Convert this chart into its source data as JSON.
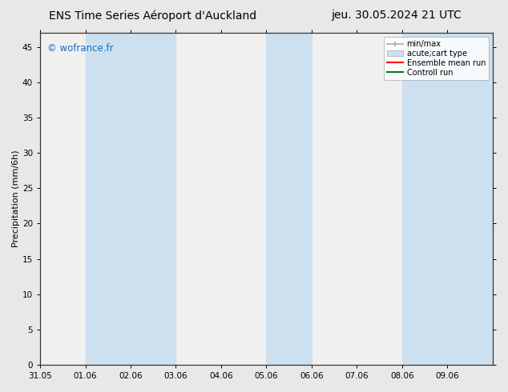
{
  "title_left": "ENS Time Series Aéroport d'Auckland",
  "title_right": "jeu. 30.05.2024 21 UTC",
  "ylabel": "Precipitation (mm/6h)",
  "watermark": "© wofrance.fr",
  "xlim_start": 0,
  "xlim_end": 10,
  "ylim": [
    0,
    47
  ],
  "yticks": [
    0,
    5,
    10,
    15,
    20,
    25,
    30,
    35,
    40,
    45
  ],
  "xtick_labels": [
    "31.05",
    "01.06",
    "02.06",
    "03.06",
    "04.06",
    "05.06",
    "06.06",
    "07.06",
    "08.06",
    "09.06"
  ],
  "xtick_positions": [
    0,
    1,
    2,
    3,
    4,
    5,
    6,
    7,
    8,
    9
  ],
  "shaded_bands": [
    {
      "x_start": 1,
      "x_end": 3,
      "color": "#cce0f0"
    },
    {
      "x_start": 5,
      "x_end": 6,
      "color": "#cce0f0"
    },
    {
      "x_start": 8,
      "x_end": 9,
      "color": "#cce0f0"
    },
    {
      "x_start": 9,
      "x_end": 10,
      "color": "#cce0f0"
    }
  ],
  "legend_entries": [
    {
      "label": "min/max",
      "type": "errorbar",
      "color": "#aaaaaa"
    },
    {
      "label": "acute;cart type",
      "type": "bar",
      "facecolor": "#cce0f0",
      "edgecolor": "#aaaaaa"
    },
    {
      "label": "Ensemble mean run",
      "type": "line",
      "color": "red"
    },
    {
      "label": "Controll run",
      "type": "line",
      "color": "green"
    }
  ],
  "watermark_color": "#1a6bbf",
  "background_color": "#e8e8e8",
  "plot_bg_color": "#f0f0f0",
  "title_fontsize": 10,
  "axis_label_fontsize": 8,
  "tick_fontsize": 7.5,
  "watermark_fontsize": 8.5
}
